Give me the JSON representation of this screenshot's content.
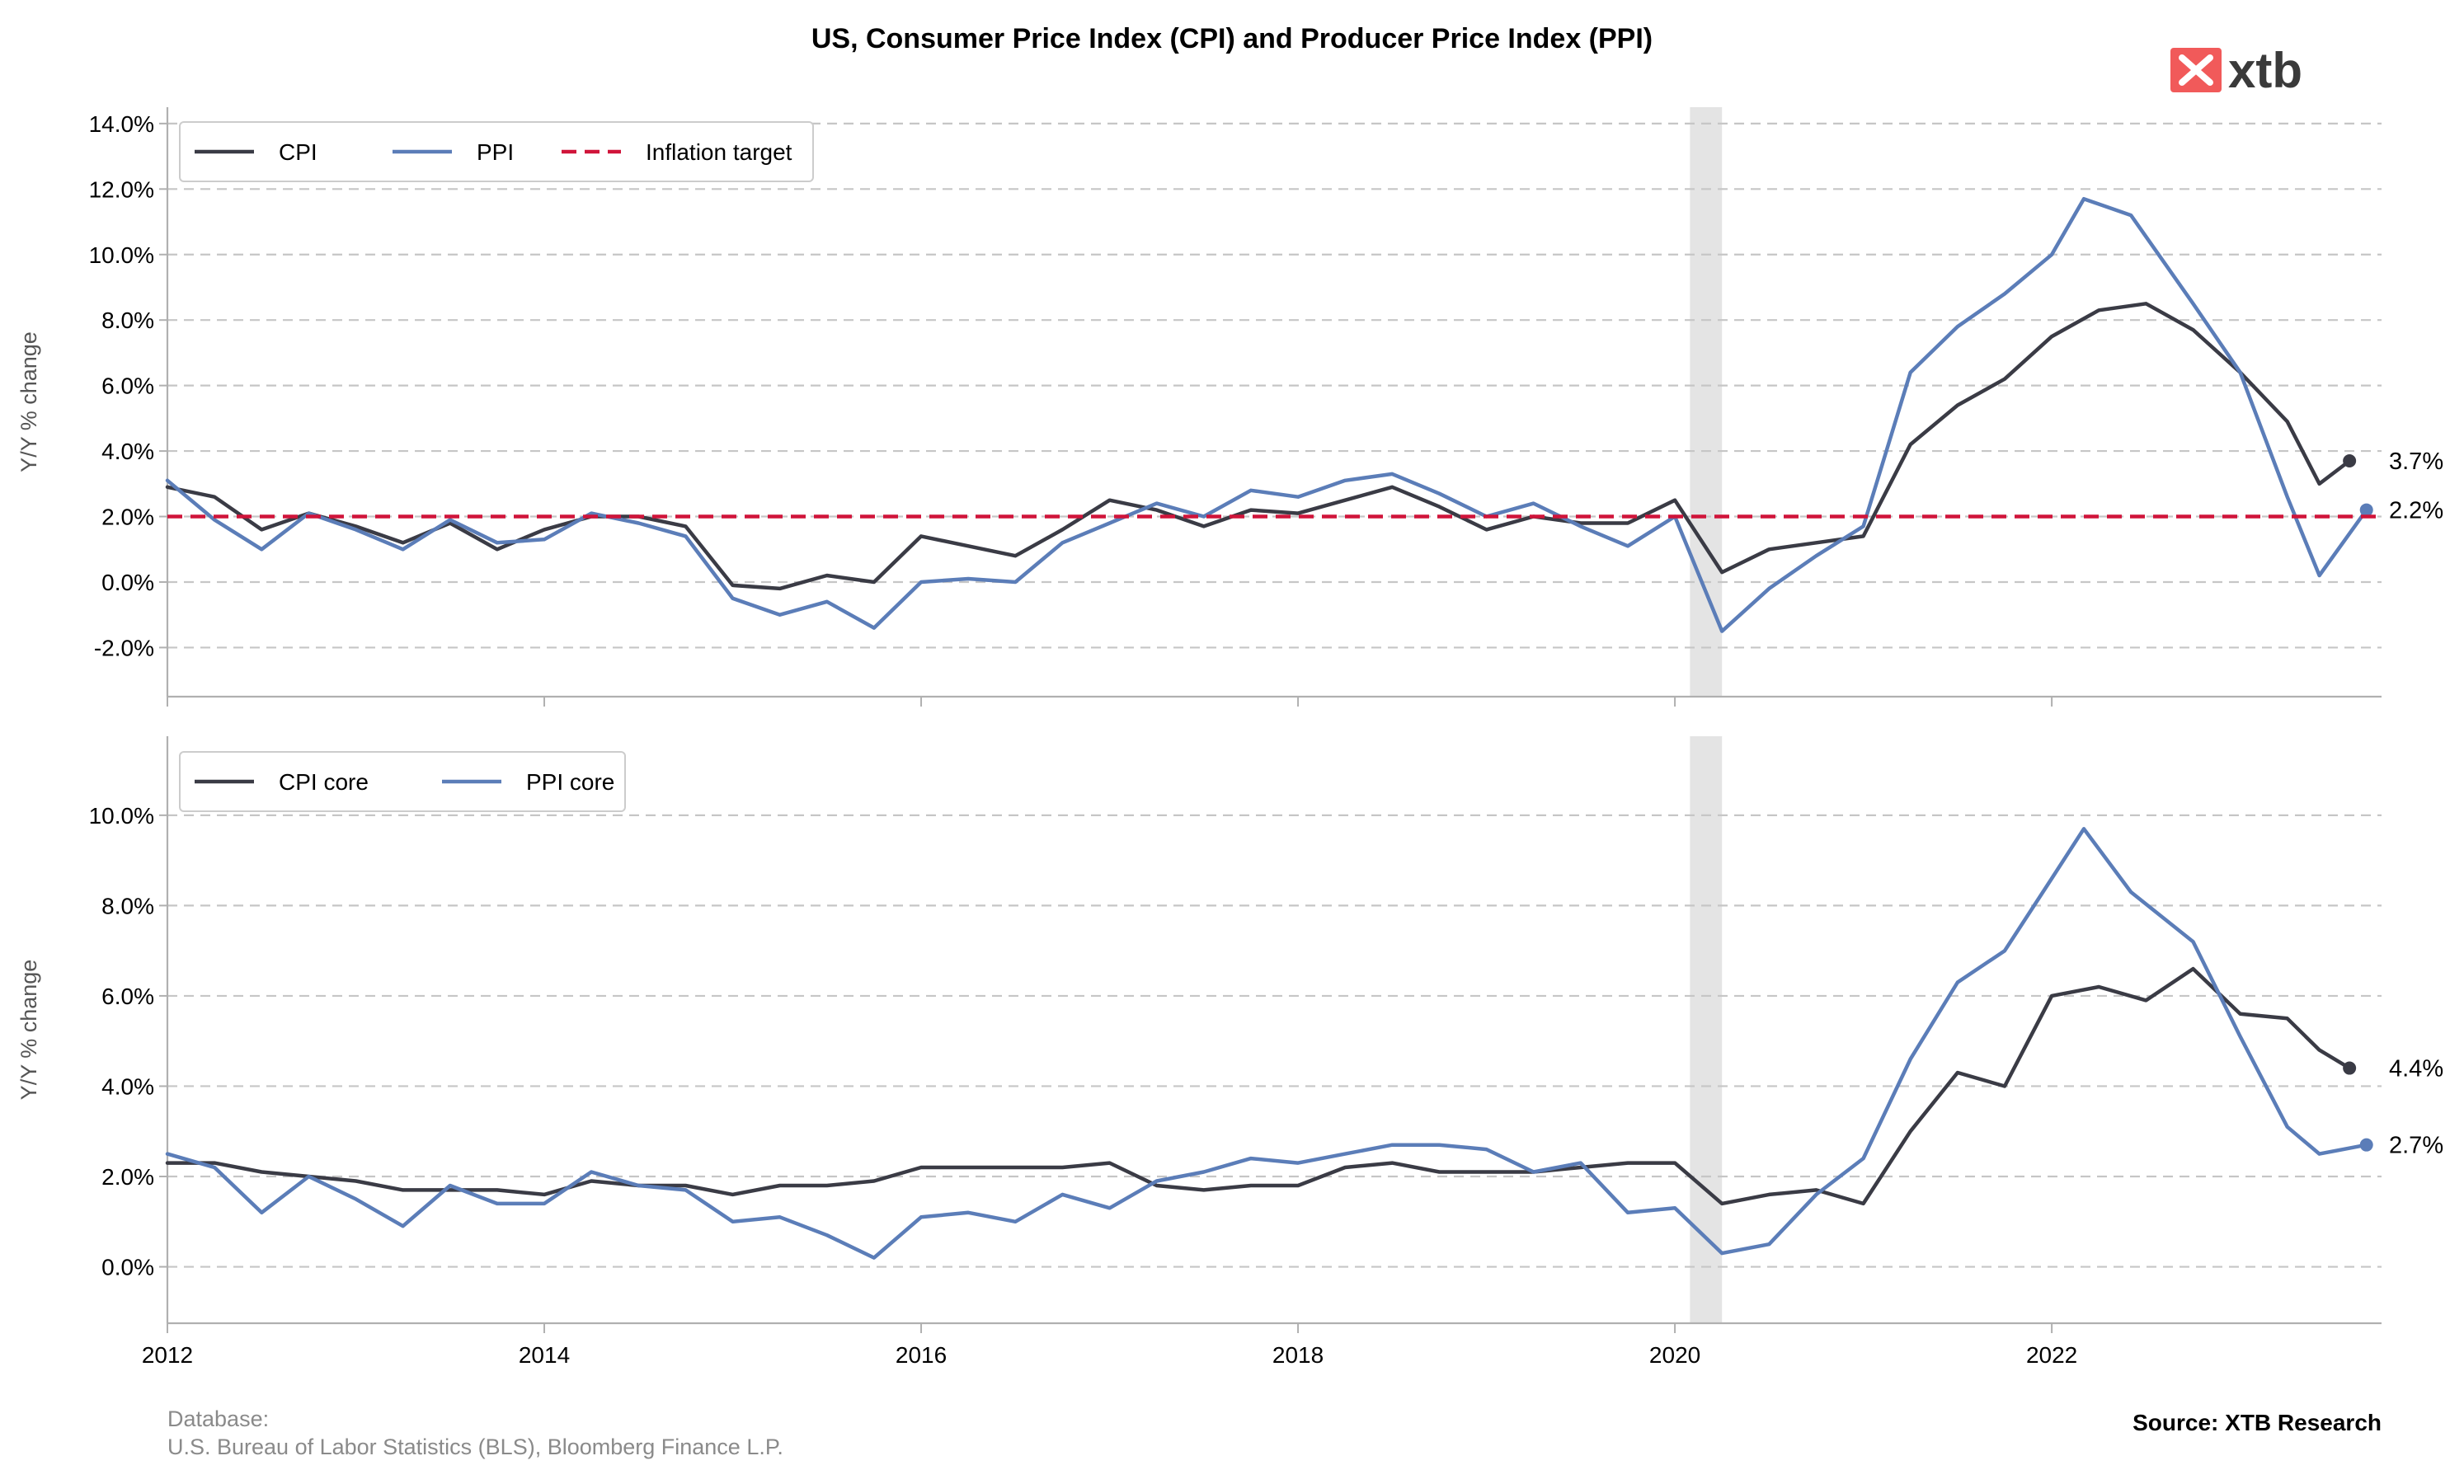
{
  "title": "US, Consumer Price Index (CPI) and Producer Price Index (PPI)",
  "logo": {
    "text": "xtb",
    "color": "#f15a5a",
    "icon": "xtb-x-icon"
  },
  "footer": {
    "database_label": "Database:",
    "database_source": "U.S. Bureau of Labor Statistics (BLS), Bloomberg Finance L.P.",
    "source": "Source: XTB Research"
  },
  "colors": {
    "cpi": "#3a3b45",
    "ppi": "#5b7db8",
    "target": "#d0143a",
    "recession": "#e4e4e4",
    "grid": "#c6c6c6",
    "axis": "#b0b0b0"
  },
  "chart_data": [
    {
      "type": "line",
      "ylabel": "Y/Y % change",
      "ylim": [
        -3.5,
        14.5
      ],
      "yticks": [
        -2,
        0,
        2,
        4,
        6,
        8,
        10,
        12,
        14
      ],
      "ytick_labels": [
        "-2.0%",
        "0.0%",
        "2.0%",
        "4.0%",
        "6.0%",
        "8.0%",
        "10.0%",
        "12.0%",
        "14.0%"
      ],
      "x_range": [
        2012.0,
        2023.75
      ],
      "xticks": [
        2012,
        2014,
        2016,
        2018,
        2020,
        2022
      ],
      "xtick_labels": [
        "2012",
        "2014",
        "2016",
        "2018",
        "2020",
        "2022"
      ],
      "grid": "horizontal dashed",
      "legend_position": "top-left",
      "shaded_period": [
        2020.08,
        2020.25
      ],
      "series": [
        {
          "name": "CPI",
          "color_key": "cpi",
          "end_label": "3.7%",
          "end_value": 3.7,
          "points": [
            [
              2012.0,
              2.9
            ],
            [
              2012.25,
              2.6
            ],
            [
              2012.5,
              1.6
            ],
            [
              2012.75,
              2.1
            ],
            [
              2013.0,
              1.7
            ],
            [
              2013.25,
              1.2
            ],
            [
              2013.5,
              1.8
            ],
            [
              2013.75,
              1.0
            ],
            [
              2014.0,
              1.6
            ],
            [
              2014.25,
              2.0
            ],
            [
              2014.5,
              2.0
            ],
            [
              2014.75,
              1.7
            ],
            [
              2015.0,
              -0.1
            ],
            [
              2015.25,
              -0.2
            ],
            [
              2015.5,
              0.2
            ],
            [
              2015.75,
              0.0
            ],
            [
              2016.0,
              1.4
            ],
            [
              2016.25,
              1.1
            ],
            [
              2016.5,
              0.8
            ],
            [
              2016.75,
              1.6
            ],
            [
              2017.0,
              2.5
            ],
            [
              2017.25,
              2.2
            ],
            [
              2017.5,
              1.7
            ],
            [
              2017.75,
              2.2
            ],
            [
              2018.0,
              2.1
            ],
            [
              2018.25,
              2.5
            ],
            [
              2018.5,
              2.9
            ],
            [
              2018.75,
              2.3
            ],
            [
              2019.0,
              1.6
            ],
            [
              2019.25,
              2.0
            ],
            [
              2019.5,
              1.8
            ],
            [
              2019.75,
              1.8
            ],
            [
              2020.0,
              2.5
            ],
            [
              2020.25,
              0.3
            ],
            [
              2020.5,
              1.0
            ],
            [
              2020.75,
              1.2
            ],
            [
              2021.0,
              1.4
            ],
            [
              2021.25,
              4.2
            ],
            [
              2021.5,
              5.4
            ],
            [
              2021.75,
              6.2
            ],
            [
              2022.0,
              7.5
            ],
            [
              2022.25,
              8.3
            ],
            [
              2022.5,
              8.5
            ],
            [
              2022.75,
              7.7
            ],
            [
              2023.0,
              6.4
            ],
            [
              2023.25,
              4.9
            ],
            [
              2023.42,
              3.0
            ],
            [
              2023.58,
              3.7
            ]
          ]
        },
        {
          "name": "PPI",
          "color_key": "ppi",
          "end_label": "2.2%",
          "end_value": 2.2,
          "points": [
            [
              2012.0,
              3.1
            ],
            [
              2012.25,
              1.9
            ],
            [
              2012.5,
              1.0
            ],
            [
              2012.75,
              2.1
            ],
            [
              2013.0,
              1.6
            ],
            [
              2013.25,
              1.0
            ],
            [
              2013.5,
              1.9
            ],
            [
              2013.75,
              1.2
            ],
            [
              2014.0,
              1.3
            ],
            [
              2014.25,
              2.1
            ],
            [
              2014.5,
              1.8
            ],
            [
              2014.75,
              1.4
            ],
            [
              2015.0,
              -0.5
            ],
            [
              2015.25,
              -1.0
            ],
            [
              2015.5,
              -0.6
            ],
            [
              2015.75,
              -1.4
            ],
            [
              2016.0,
              0.0
            ],
            [
              2016.25,
              0.1
            ],
            [
              2016.5,
              0.0
            ],
            [
              2016.75,
              1.2
            ],
            [
              2017.0,
              1.8
            ],
            [
              2017.25,
              2.4
            ],
            [
              2017.5,
              2.0
            ],
            [
              2017.75,
              2.8
            ],
            [
              2018.0,
              2.6
            ],
            [
              2018.25,
              3.1
            ],
            [
              2018.5,
              3.3
            ],
            [
              2018.75,
              2.7
            ],
            [
              2019.0,
              2.0
            ],
            [
              2019.25,
              2.4
            ],
            [
              2019.5,
              1.7
            ],
            [
              2019.75,
              1.1
            ],
            [
              2020.0,
              2.0
            ],
            [
              2020.25,
              -1.5
            ],
            [
              2020.5,
              -0.2
            ],
            [
              2020.75,
              0.8
            ],
            [
              2021.0,
              1.7
            ],
            [
              2021.25,
              6.4
            ],
            [
              2021.5,
              7.8
            ],
            [
              2021.75,
              8.8
            ],
            [
              2022.0,
              10.0
            ],
            [
              2022.17,
              11.7
            ],
            [
              2022.42,
              11.2
            ],
            [
              2022.75,
              8.5
            ],
            [
              2023.0,
              6.4
            ],
            [
              2023.25,
              2.6
            ],
            [
              2023.42,
              0.2
            ],
            [
              2023.67,
              2.2
            ]
          ]
        },
        {
          "name": "Inflation target",
          "color_key": "target",
          "value": 2.0,
          "style": "dashed"
        }
      ]
    },
    {
      "type": "line",
      "ylabel": "Y/Y % change",
      "ylim": [
        -1.25,
        11.75
      ],
      "yticks": [
        0,
        2,
        4,
        6,
        8,
        10
      ],
      "ytick_labels": [
        "0.0%",
        "2.0%",
        "4.0%",
        "6.0%",
        "8.0%",
        "10.0%"
      ],
      "x_range": [
        2012.0,
        2023.75
      ],
      "xticks": [
        2012,
        2014,
        2016,
        2018,
        2020,
        2022
      ],
      "xtick_labels": [
        "2012",
        "2014",
        "2016",
        "2018",
        "2020",
        "2022"
      ],
      "grid": "horizontal dashed",
      "legend_position": "top-left",
      "shaded_period": [
        2020.08,
        2020.25
      ],
      "series": [
        {
          "name": "CPI core",
          "color_key": "cpi",
          "end_label": "4.4%",
          "end_value": 4.4,
          "points": [
            [
              2012.0,
              2.3
            ],
            [
              2012.25,
              2.3
            ],
            [
              2012.5,
              2.1
            ],
            [
              2012.75,
              2.0
            ],
            [
              2013.0,
              1.9
            ],
            [
              2013.25,
              1.7
            ],
            [
              2013.5,
              1.7
            ],
            [
              2013.75,
              1.7
            ],
            [
              2014.0,
              1.6
            ],
            [
              2014.25,
              1.9
            ],
            [
              2014.5,
              1.8
            ],
            [
              2014.75,
              1.8
            ],
            [
              2015.0,
              1.6
            ],
            [
              2015.25,
              1.8
            ],
            [
              2015.5,
              1.8
            ],
            [
              2015.75,
              1.9
            ],
            [
              2016.0,
              2.2
            ],
            [
              2016.25,
              2.2
            ],
            [
              2016.5,
              2.2
            ],
            [
              2016.75,
              2.2
            ],
            [
              2017.0,
              2.3
            ],
            [
              2017.25,
              1.8
            ],
            [
              2017.5,
              1.7
            ],
            [
              2017.75,
              1.8
            ],
            [
              2018.0,
              1.8
            ],
            [
              2018.25,
              2.2
            ],
            [
              2018.5,
              2.3
            ],
            [
              2018.75,
              2.1
            ],
            [
              2019.0,
              2.1
            ],
            [
              2019.25,
              2.1
            ],
            [
              2019.5,
              2.2
            ],
            [
              2019.75,
              2.3
            ],
            [
              2020.0,
              2.3
            ],
            [
              2020.25,
              1.4
            ],
            [
              2020.5,
              1.6
            ],
            [
              2020.75,
              1.7
            ],
            [
              2021.0,
              1.4
            ],
            [
              2021.25,
              3.0
            ],
            [
              2021.5,
              4.3
            ],
            [
              2021.75,
              4.0
            ],
            [
              2022.0,
              6.0
            ],
            [
              2022.25,
              6.2
            ],
            [
              2022.5,
              5.9
            ],
            [
              2022.75,
              6.6
            ],
            [
              2023.0,
              5.6
            ],
            [
              2023.25,
              5.5
            ],
            [
              2023.42,
              4.8
            ],
            [
              2023.58,
              4.4
            ]
          ]
        },
        {
          "name": "PPI core",
          "color_key": "ppi",
          "end_label": "2.7%",
          "end_value": 2.7,
          "points": [
            [
              2012.0,
              2.5
            ],
            [
              2012.25,
              2.2
            ],
            [
              2012.5,
              1.2
            ],
            [
              2012.75,
              2.0
            ],
            [
              2013.0,
              1.5
            ],
            [
              2013.25,
              0.9
            ],
            [
              2013.5,
              1.8
            ],
            [
              2013.75,
              1.4
            ],
            [
              2014.0,
              1.4
            ],
            [
              2014.25,
              2.1
            ],
            [
              2014.5,
              1.8
            ],
            [
              2014.75,
              1.7
            ],
            [
              2015.0,
              1.0
            ],
            [
              2015.25,
              1.1
            ],
            [
              2015.5,
              0.7
            ],
            [
              2015.75,
              0.2
            ],
            [
              2016.0,
              1.1
            ],
            [
              2016.25,
              1.2
            ],
            [
              2016.5,
              1.0
            ],
            [
              2016.75,
              1.6
            ],
            [
              2017.0,
              1.3
            ],
            [
              2017.25,
              1.9
            ],
            [
              2017.5,
              2.1
            ],
            [
              2017.75,
              2.4
            ],
            [
              2018.0,
              2.3
            ],
            [
              2018.25,
              2.5
            ],
            [
              2018.5,
              2.7
            ],
            [
              2018.75,
              2.7
            ],
            [
              2019.0,
              2.6
            ],
            [
              2019.25,
              2.1
            ],
            [
              2019.5,
              2.3
            ],
            [
              2019.75,
              1.2
            ],
            [
              2020.0,
              1.3
            ],
            [
              2020.25,
              0.3
            ],
            [
              2020.5,
              0.5
            ],
            [
              2020.75,
              1.6
            ],
            [
              2021.0,
              2.4
            ],
            [
              2021.25,
              4.6
            ],
            [
              2021.5,
              6.3
            ],
            [
              2021.75,
              7.0
            ],
            [
              2022.0,
              8.6
            ],
            [
              2022.17,
              9.7
            ],
            [
              2022.42,
              8.3
            ],
            [
              2022.75,
              7.2
            ],
            [
              2023.0,
              5.1
            ],
            [
              2023.25,
              3.1
            ],
            [
              2023.42,
              2.5
            ],
            [
              2023.67,
              2.7
            ]
          ]
        }
      ]
    }
  ]
}
